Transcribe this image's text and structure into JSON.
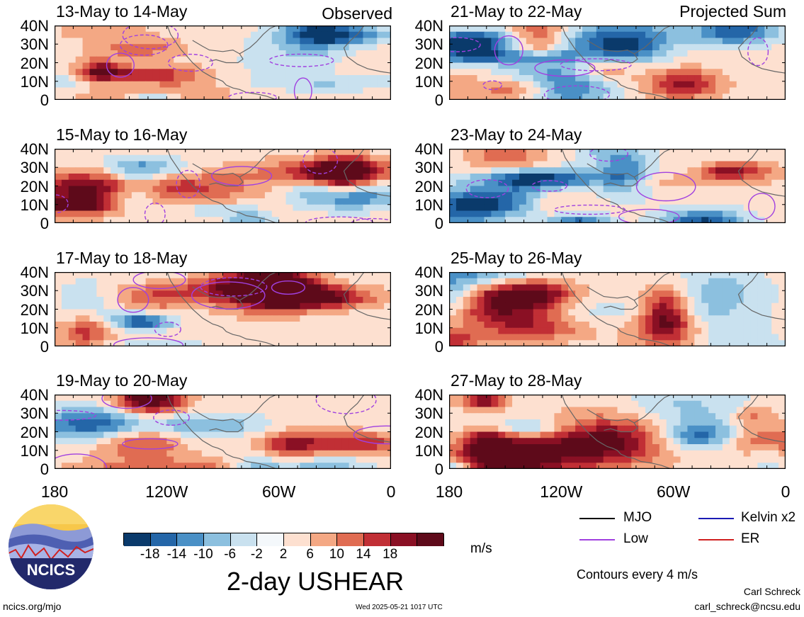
{
  "panel_headers": {
    "left": "Observed",
    "right": "Projected Sum"
  },
  "panels": [
    {
      "date": "13-May to 14-May",
      "column": "left",
      "row": 0,
      "seed": 11,
      "contours": true
    },
    {
      "date": "15-May to 16-May",
      "column": "left",
      "row": 1,
      "seed": 23,
      "contours": true
    },
    {
      "date": "17-May to 18-May",
      "column": "left",
      "row": 2,
      "seed": 37,
      "contours": true
    },
    {
      "date": "19-May to 20-May",
      "column": "left",
      "row": 3,
      "seed": 41,
      "contours": true
    },
    {
      "date": "21-May to 22-May",
      "column": "right",
      "row": 0,
      "seed": 53,
      "contours": true
    },
    {
      "date": "23-May to 24-May",
      "column": "right",
      "row": 1,
      "seed": 67,
      "contours": true
    },
    {
      "date": "25-May to 26-May",
      "column": "right",
      "row": 2,
      "seed": 71,
      "contours": false
    },
    {
      "date": "27-May to 28-May",
      "column": "right",
      "row": 3,
      "seed": 83,
      "contours": false
    }
  ],
  "lat_labels": [
    "40N",
    "30N",
    "20N",
    "10N",
    "0"
  ],
  "lon_labels": [
    "180",
    "120W",
    "60W",
    "0"
  ],
  "colorbar": {
    "colors": [
      "#0a3a6b",
      "#2466a8",
      "#4a90c6",
      "#8cc0df",
      "#c9e1ef",
      "#f4f8fb",
      "#fde0d0",
      "#f4a884",
      "#e06c52",
      "#c12f35",
      "#8a1024",
      "#5e0a1a"
    ],
    "labels": [
      "-18",
      "-14",
      "-10",
      "-6",
      "-2",
      "2",
      "6",
      "10",
      "14",
      "18"
    ],
    "units": "m/s",
    "title": "2-day USHEAR"
  },
  "legend": {
    "items": [
      {
        "label": "MJO",
        "color": "#000000"
      },
      {
        "label": "Kelvin x2",
        "color": "#1a1ab4"
      },
      {
        "label": "Low",
        "color": "#a040e0"
      },
      {
        "label": "ER",
        "color": "#d02020"
      }
    ],
    "contour_note": "Contours every 4 m/s"
  },
  "footer": {
    "logo_text": "NCICS",
    "url": "ncics.org/mjo",
    "timestamp": "Wed 2025-05-21 1017 UTC",
    "author": "Carl Schreck",
    "email": "carl_schreck@ncsu.edu"
  },
  "chart_data": {
    "type": "heatmap",
    "variable": "2-day USHEAR",
    "units": "m/s",
    "ylim": [
      0,
      40
    ],
    "yticks": [
      "40N",
      "30N",
      "20N",
      "10N",
      "0"
    ],
    "xticks": [
      "180",
      "120W",
      "60W",
      "0"
    ],
    "color_levels": [
      -18,
      -14,
      -10,
      -6,
      -2,
      2,
      6,
      10,
      14,
      18
    ]
  }
}
